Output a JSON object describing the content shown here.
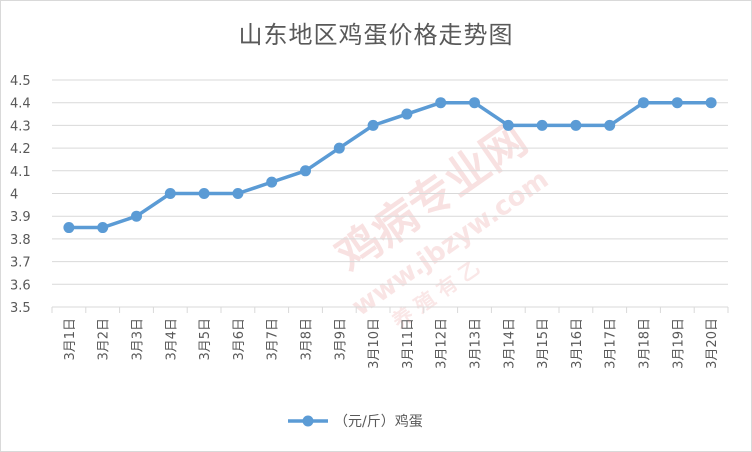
{
  "chart_data": {
    "type": "line",
    "title": "山东地区鸡蛋价格走势图",
    "categories": [
      "3月1日",
      "3月2日",
      "3月3日",
      "3月4日",
      "3月5日",
      "3月6日",
      "3月7日",
      "3月8日",
      "3月9日",
      "3月10日",
      "3月11日",
      "3月12日",
      "3月13日",
      "3月14日",
      "3月15日",
      "3月16日",
      "3月17日",
      "3月18日",
      "3月19日",
      "3月20日"
    ],
    "series": [
      {
        "name": "（元/斤）鸡蛋",
        "values": [
          3.85,
          3.85,
          3.9,
          4.0,
          4.0,
          4.0,
          4.05,
          4.1,
          4.2,
          4.3,
          4.35,
          4.4,
          4.4,
          4.3,
          4.3,
          4.3,
          4.3,
          4.4,
          4.4,
          4.4
        ]
      }
    ],
    "ylim": [
      3.5,
      4.5
    ],
    "yticks": [
      "3.5",
      "3.6",
      "3.7",
      "3.8",
      "3.9",
      "4",
      "4.1",
      "4.2",
      "4.3",
      "4.4",
      "4.5"
    ],
    "grid": true,
    "legend": "bottom",
    "xlabel": "",
    "ylabel": ""
  },
  "colors": {
    "line": "#5b9bd5",
    "grid": "#d9d9d9",
    "text": "#595959",
    "watermark": "#f3c9c9"
  },
  "watermark": {
    "main": "鸡病专业网",
    "url": "www.jbzyw.com",
    "sub": "养 殖 有 乙"
  }
}
